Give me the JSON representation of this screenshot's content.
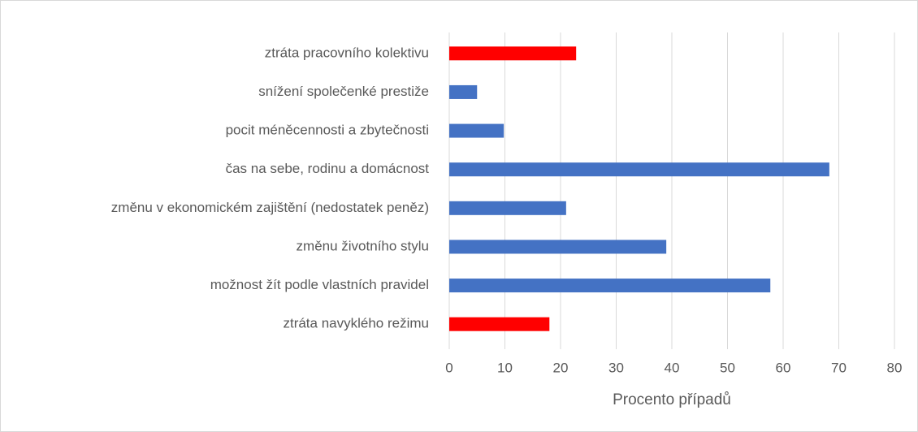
{
  "chart_data": {
    "type": "bar",
    "orientation": "horizontal",
    "categories": [
      "ztráta pracovního kolektivu",
      "snížení společenké prestiže",
      "pocit méněcennosti a zbytečnosti",
      "čas na sebe, rodinu a domácnost",
      "změnu v ekonomickém zajištění (nedostatek peněz)",
      "změnu životního stylu",
      "možnost žít podle vlastních pravidel",
      "ztráta navyklého režimu"
    ],
    "values": [
      22.8,
      5,
      9.8,
      68.3,
      21,
      39,
      57.7,
      18
    ],
    "colors": [
      "#ff0000",
      "#4472c4",
      "#4472c4",
      "#4472c4",
      "#4472c4",
      "#4472c4",
      "#4472c4",
      "#ff0000"
    ],
    "xlabel": "Procento případů",
    "xlim": [
      0,
      80
    ],
    "xticks": [
      0,
      10,
      20,
      30,
      40,
      50,
      60,
      70,
      80
    ],
    "grid": true
  }
}
